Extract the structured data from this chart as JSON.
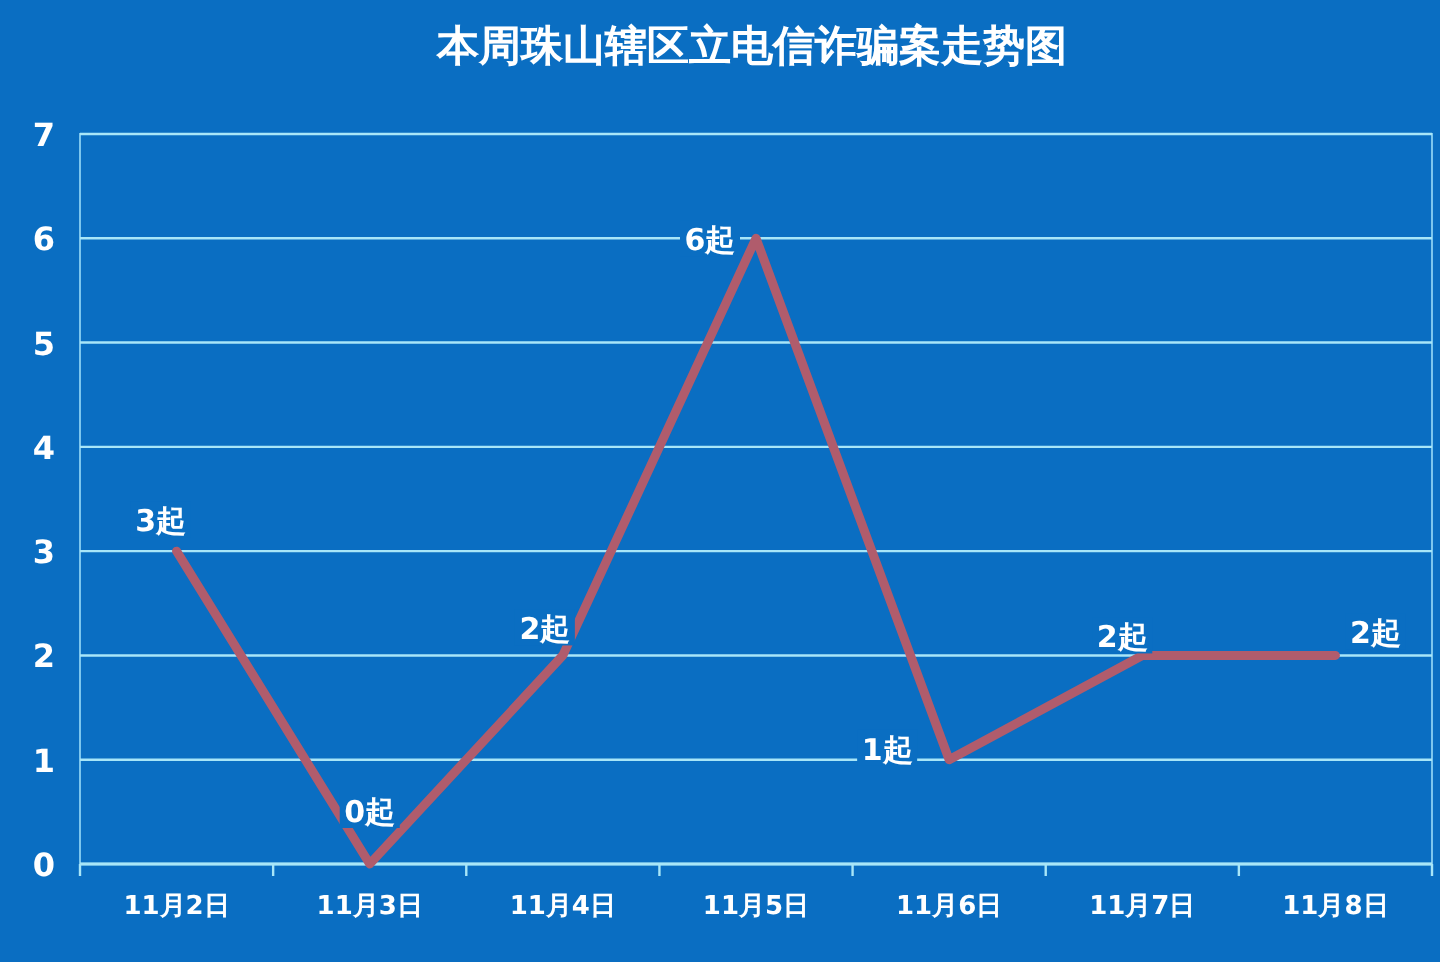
{
  "chart_data": {
    "type": "line",
    "title": "本周珠山辖区立电信诈骗案走势图",
    "categories": [
      "11月2日",
      "11月3日",
      "11月4日",
      "11月5日",
      "11月6日",
      "11月7日",
      "11月8日"
    ],
    "series": [
      {
        "color": "#b05c6c",
        "values": [
          3,
          0,
          2,
          6,
          1,
          2,
          2
        ],
        "value_labels": [
          "3起",
          "0起",
          "2起",
          "6起",
          "1起",
          "2起",
          "2起"
        ]
      }
    ],
    "ylim": [
      0,
      7
    ],
    "yticks": [
      0,
      1,
      2,
      3,
      4,
      5,
      6,
      7
    ],
    "grid": "y",
    "line_style": "solid"
  }
}
